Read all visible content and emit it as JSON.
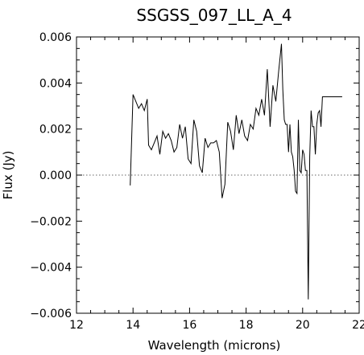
{
  "chart_data": {
    "type": "line",
    "title": "SSGSS_097_LL_A_4",
    "xlabel": "Wavelength (microns)",
    "ylabel": "Flux (Jy)",
    "xlim": [
      12,
      22
    ],
    "ylim": [
      -0.006,
      0.006
    ],
    "x_ticks": [
      "12",
      "14",
      "16",
      "18",
      "20",
      "22"
    ],
    "y_ticks": [
      "−0.006",
      "−0.004",
      "−0.002",
      "0.000",
      "0.002",
      "0.004",
      "0.006"
    ],
    "reference_line": {
      "y": 0.0,
      "style": "dotted"
    },
    "grid": false,
    "legend": "none",
    "series": [
      {
        "x": [
          13.9,
          14.0,
          14.1,
          14.2,
          14.3,
          14.4,
          14.5,
          14.55,
          14.65,
          14.75,
          14.85,
          14.95,
          15.05,
          15.15,
          15.25,
          15.35,
          15.45,
          15.55,
          15.65,
          15.75,
          15.85,
          15.95,
          16.05,
          16.15,
          16.25,
          16.35,
          16.45,
          16.55,
          16.65,
          16.75,
          16.85,
          16.95,
          17.05,
          17.15,
          17.25,
          17.35,
          17.45,
          17.55,
          17.65,
          17.75,
          17.85,
          17.95,
          18.05,
          18.15,
          18.25,
          18.35,
          18.45,
          18.55,
          18.65,
          18.75,
          18.85,
          18.95,
          19.05,
          19.15,
          19.25,
          19.3,
          19.35,
          19.4,
          19.45,
          19.5,
          19.55,
          19.6,
          19.65,
          19.7,
          19.75,
          19.8,
          19.85,
          19.9,
          19.95,
          20.0,
          20.05,
          20.1,
          20.15,
          20.2,
          20.25,
          20.3,
          20.35,
          20.4,
          20.45,
          20.5,
          20.55,
          20.6,
          20.65,
          20.7,
          20.8,
          20.9,
          21.0,
          21.1,
          21.2,
          21.3,
          21.4
        ],
        "y": [
          -0.00045,
          0.0035,
          0.0032,
          0.0029,
          0.0031,
          0.0028,
          0.0033,
          0.0013,
          0.0011,
          0.0014,
          0.0017,
          0.0009,
          0.0019,
          0.0016,
          0.0018,
          0.0015,
          0.001,
          0.0012,
          0.0022,
          0.0016,
          0.0021,
          0.0007,
          0.0005,
          0.0024,
          0.0019,
          0.0004,
          0.0001,
          0.0016,
          0.0012,
          0.0014,
          0.0014,
          0.0015,
          0.001,
          -0.001,
          -0.0004,
          0.0023,
          0.0019,
          0.0011,
          0.0026,
          0.0018,
          0.0024,
          0.0017,
          0.0015,
          0.0022,
          0.002,
          0.0029,
          0.0026,
          0.0033,
          0.0026,
          0.0046,
          0.0021,
          0.0039,
          0.0032,
          0.0045,
          0.0057,
          0.0037,
          0.0024,
          0.0022,
          0.0022,
          0.001,
          0.0022,
          0.001,
          0.0008,
          0.0002,
          -0.0007,
          -0.0008,
          0.0024,
          0.0002,
          0.0001,
          0.0011,
          0.0009,
          0.0002,
          0.0002,
          -0.0054,
          0.0008,
          0.0028,
          0.0021,
          0.0021,
          0.0009,
          0.0022,
          0.0027,
          0.0028,
          0.0021,
          0.0034,
          0.0034,
          0.0034,
          0.0034,
          0.0034,
          0.0034,
          0.0034,
          0.0034
        ]
      }
    ]
  }
}
